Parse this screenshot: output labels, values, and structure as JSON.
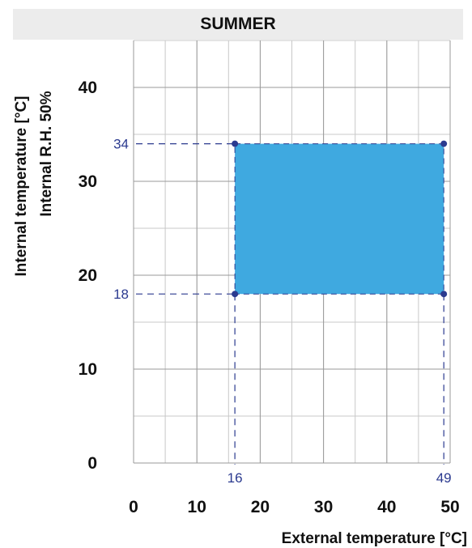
{
  "chart_data": {
    "type": "area",
    "title": "SUMMER",
    "xlabel": "External temperature [°C]",
    "ylabel_lines": [
      "Internal temperature [°C]",
      "Internal R.H. 50%"
    ],
    "xlim": [
      0,
      50
    ],
    "ylim": [
      0,
      45
    ],
    "x_ticks": [
      0,
      10,
      20,
      30,
      40,
      50
    ],
    "y_ticks": [
      0,
      10,
      20,
      30,
      40
    ],
    "grid": true,
    "region": {
      "x_min": 16,
      "x_max": 49,
      "y_min": 18,
      "y_max": 34
    },
    "annotations": {
      "x_min_label": "16",
      "x_max_label": "49",
      "y_min_label": "18",
      "y_max_label": "34"
    },
    "colors": {
      "fill": "#3fa9e0",
      "line": "#2b3a8f",
      "grid": "#c8c8c8"
    }
  }
}
